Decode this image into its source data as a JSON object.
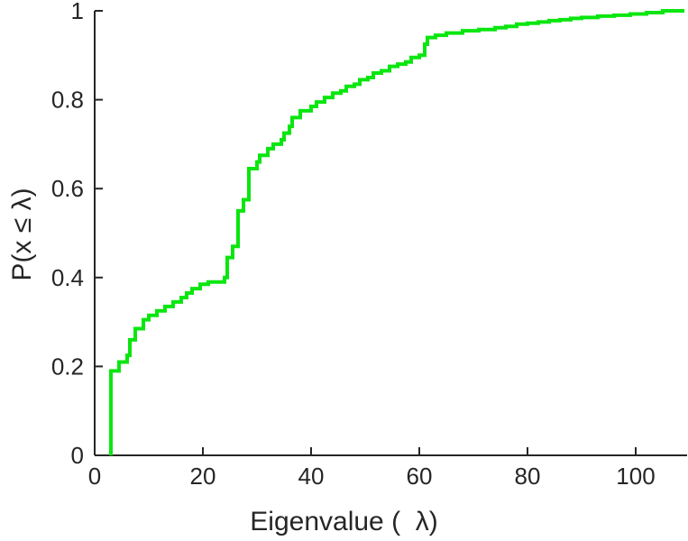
{
  "figure": {
    "background": "#ffffff"
  },
  "chart_data": {
    "type": "line",
    "subtype": "ecdf-stairs",
    "title": "",
    "xlabel": "Eigenvalue (  λ)",
    "ylabel": "P(x ≤ λ)",
    "xlim": [
      0,
      109
    ],
    "ylim": [
      0,
      1
    ],
    "xticks": [
      0,
      20,
      40,
      60,
      80,
      100
    ],
    "yticks": [
      0,
      0.2,
      0.4,
      0.6,
      0.8,
      1
    ],
    "grid": false,
    "legend": null,
    "line_color": "#0ae60f",
    "line_width": 4,
    "axis_color": "#262626",
    "tick_label_size": 26,
    "steps": [
      [
        3,
        0.19
      ],
      [
        4.5,
        0.21
      ],
      [
        6,
        0.225
      ],
      [
        6.5,
        0.26
      ],
      [
        7.5,
        0.285
      ],
      [
        9,
        0.305
      ],
      [
        10,
        0.315
      ],
      [
        11.5,
        0.325
      ],
      [
        13,
        0.335
      ],
      [
        14.5,
        0.345
      ],
      [
        16,
        0.355
      ],
      [
        17,
        0.365
      ],
      [
        18,
        0.375
      ],
      [
        19.5,
        0.385
      ],
      [
        21,
        0.39
      ],
      [
        24,
        0.4
      ],
      [
        24.5,
        0.445
      ],
      [
        25.5,
        0.47
      ],
      [
        26.5,
        0.55
      ],
      [
        27.5,
        0.575
      ],
      [
        28.5,
        0.645
      ],
      [
        30,
        0.66
      ],
      [
        30.5,
        0.675
      ],
      [
        32,
        0.69
      ],
      [
        33,
        0.7
      ],
      [
        34.5,
        0.71
      ],
      [
        35,
        0.725
      ],
      [
        36,
        0.74
      ],
      [
        36.5,
        0.76
      ],
      [
        38,
        0.775
      ],
      [
        40,
        0.785
      ],
      [
        41,
        0.795
      ],
      [
        42.5,
        0.805
      ],
      [
        44,
        0.815
      ],
      [
        45.5,
        0.82
      ],
      [
        46.5,
        0.83
      ],
      [
        48,
        0.835
      ],
      [
        49,
        0.845
      ],
      [
        50.5,
        0.85
      ],
      [
        51.5,
        0.86
      ],
      [
        53,
        0.865
      ],
      [
        54.5,
        0.875
      ],
      [
        56,
        0.88
      ],
      [
        57.5,
        0.885
      ],
      [
        58.5,
        0.895
      ],
      [
        60,
        0.9
      ],
      [
        61,
        0.925
      ],
      [
        61.5,
        0.94
      ],
      [
        63,
        0.945
      ],
      [
        65,
        0.95
      ],
      [
        68,
        0.955
      ],
      [
        71,
        0.958
      ],
      [
        74,
        0.962
      ],
      [
        76,
        0.965
      ],
      [
        78,
        0.97
      ],
      [
        80,
        0.972
      ],
      [
        82,
        0.975
      ],
      [
        84,
        0.978
      ],
      [
        86,
        0.98
      ],
      [
        88,
        0.983
      ],
      [
        90,
        0.985
      ],
      [
        93,
        0.988
      ],
      [
        96,
        0.99
      ],
      [
        99,
        0.993
      ],
      [
        102,
        0.996
      ],
      [
        105,
        1.0
      ]
    ]
  }
}
